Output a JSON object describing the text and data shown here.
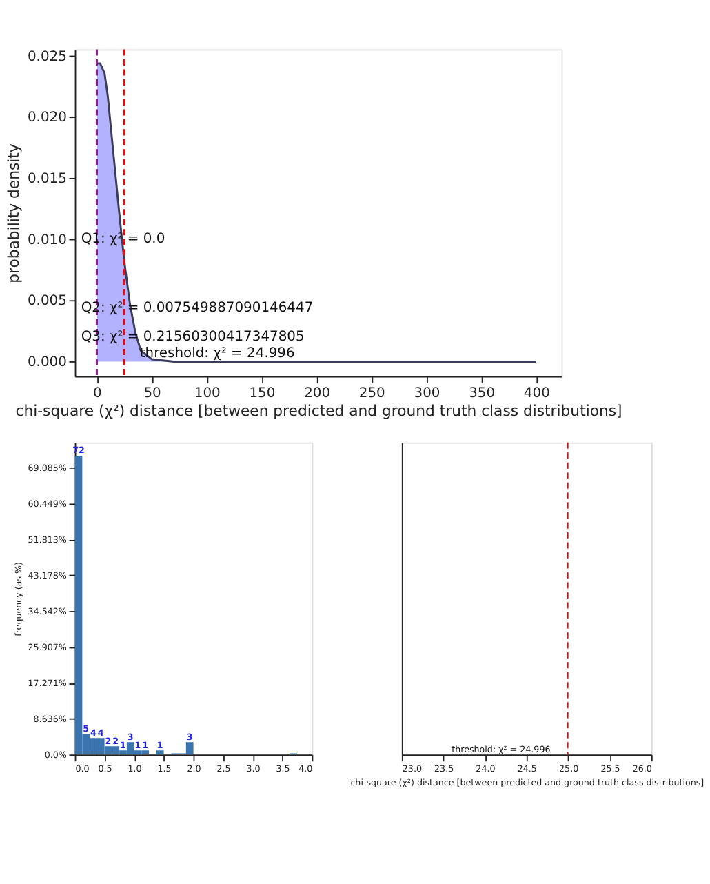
{
  "chart_data": [
    {
      "type": "area",
      "xlabel": "chi-square (χ²) distance [between predicted and ground truth class distributions]",
      "ylabel": "probability density",
      "x": [
        0,
        3,
        7,
        10,
        15,
        20,
        25,
        30,
        35,
        40,
        50,
        60,
        70,
        100,
        200,
        300,
        400
      ],
      "series": [
        {
          "color": "#aaaaff",
          "values": [
            0.0244,
            0.0244,
            0.0236,
            0.0217,
            0.0171,
            0.0125,
            0.0082,
            0.0048,
            0.0024,
            0.0009,
            0.0002,
            0.0001,
            0,
            0,
            0,
            0,
            0
          ]
        }
      ],
      "xlim": [
        -20,
        423
      ],
      "ylim": [
        -0.0012,
        0.02555
      ],
      "xticks": [
        0,
        50,
        100,
        150,
        200,
        250,
        300,
        350,
        400
      ],
      "yticks": [
        {
          "value": 0,
          "label": "0.000"
        },
        {
          "value": 0.005,
          "label": "0.005"
        },
        {
          "value": 0.01,
          "label": "0.010"
        },
        {
          "value": 0.015,
          "label": "0.015"
        },
        {
          "value": 0.02,
          "label": "0.020"
        },
        {
          "value": 0.025,
          "label": "0.025"
        }
      ],
      "ref_lines": [
        {
          "axis": "x",
          "value": 0.0,
          "color": "#800080",
          "line_style": "dashed"
        },
        {
          "axis": "x",
          "value": 24.996,
          "color": "#ff0000",
          "line_style": "dashed"
        }
      ],
      "annotations": [
        "Q1: χ² = 0.0",
        "Q2: χ² = 0.007549887090146447",
        "Q3: χ² = 0.21560300417347805",
        "threshold: χ² = 24.996"
      ],
      "grid": false
    },
    {
      "type": "histogram",
      "ylabel": "frequency (as %)",
      "color": "#3a75b0",
      "bins": [
        0,
        0.125,
        0.25,
        0.375,
        0.5,
        0.625,
        0.75,
        0.875,
        1.0,
        1.125,
        1.25,
        1.375,
        1.5,
        1.625,
        1.75,
        1.875,
        2.0,
        2.125,
        2.25,
        2.375,
        2.5,
        2.625,
        2.75,
        2.875,
        3.0,
        3.125,
        3.25,
        3.375,
        3.5,
        3.625,
        3.75,
        3.875,
        4.0
      ],
      "values": [
        72,
        5,
        4,
        4,
        2,
        2,
        1,
        3,
        1,
        1,
        0.2,
        1,
        0,
        0.3,
        0.3,
        3,
        0,
        0,
        0,
        0,
        0,
        0,
        0,
        0,
        0,
        0,
        0,
        0,
        0,
        0.3,
        0,
        0
      ],
      "value_labels": [
        "72",
        "5",
        "4",
        "4",
        "2",
        "2",
        "1",
        "3",
        "1",
        "1",
        null,
        "1",
        null,
        null,
        null,
        "3",
        null,
        null,
        null,
        null,
        null,
        null,
        null,
        null,
        null,
        null,
        null,
        null,
        null,
        null,
        null,
        null
      ],
      "xlim": [
        0,
        4.0
      ],
      "xticks": [
        {
          "value": 0,
          "label": "0.0"
        },
        0.5,
        {
          "value": 1,
          "label": "1.0"
        },
        1.5,
        {
          "value": 2,
          "label": "2.0"
        },
        2.5,
        {
          "value": 3,
          "label": "3.0"
        },
        3.5,
        {
          "value": 4,
          "label": "4.0"
        }
      ],
      "ylim": [
        0,
        75.2
      ],
      "yticks": [
        {
          "value": 0,
          "label": "0.0%"
        },
        {
          "value": 8.636,
          "label": "8.636%"
        },
        {
          "value": 17.271,
          "label": "17.271%"
        },
        {
          "value": 25.907,
          "label": "25.907%"
        },
        {
          "value": 34.542,
          "label": "34.542%"
        },
        {
          "value": 43.178,
          "label": "43.178%"
        },
        {
          "value": 51.813,
          "label": "51.813%"
        },
        {
          "value": 60.449,
          "label": "60.449%"
        },
        {
          "value": 69.085,
          "label": "69.085%"
        }
      ],
      "grid": false
    },
    {
      "type": "histogram",
      "xlabel": "chi-square (χ²) distance [between predicted and ground truth class distributions]",
      "xlim": [
        23.0,
        26.0
      ],
      "xticks": [
        {
          "value": 23,
          "label": "23.0"
        },
        23.5,
        {
          "value": 24,
          "label": "24.0"
        },
        24.5,
        {
          "value": 25,
          "label": "25.0"
        },
        25.5,
        {
          "value": 26,
          "label": "26.0"
        }
      ],
      "ylim": [
        0,
        75.2
      ],
      "tick_labels": "x",
      "ref_lines": [
        {
          "axis": "x",
          "value": 24.996,
          "color": "#ff0000",
          "line_style": "dashed"
        }
      ],
      "annotations": [
        "threshold: χ² = 24.996"
      ],
      "grid": false
    }
  ]
}
